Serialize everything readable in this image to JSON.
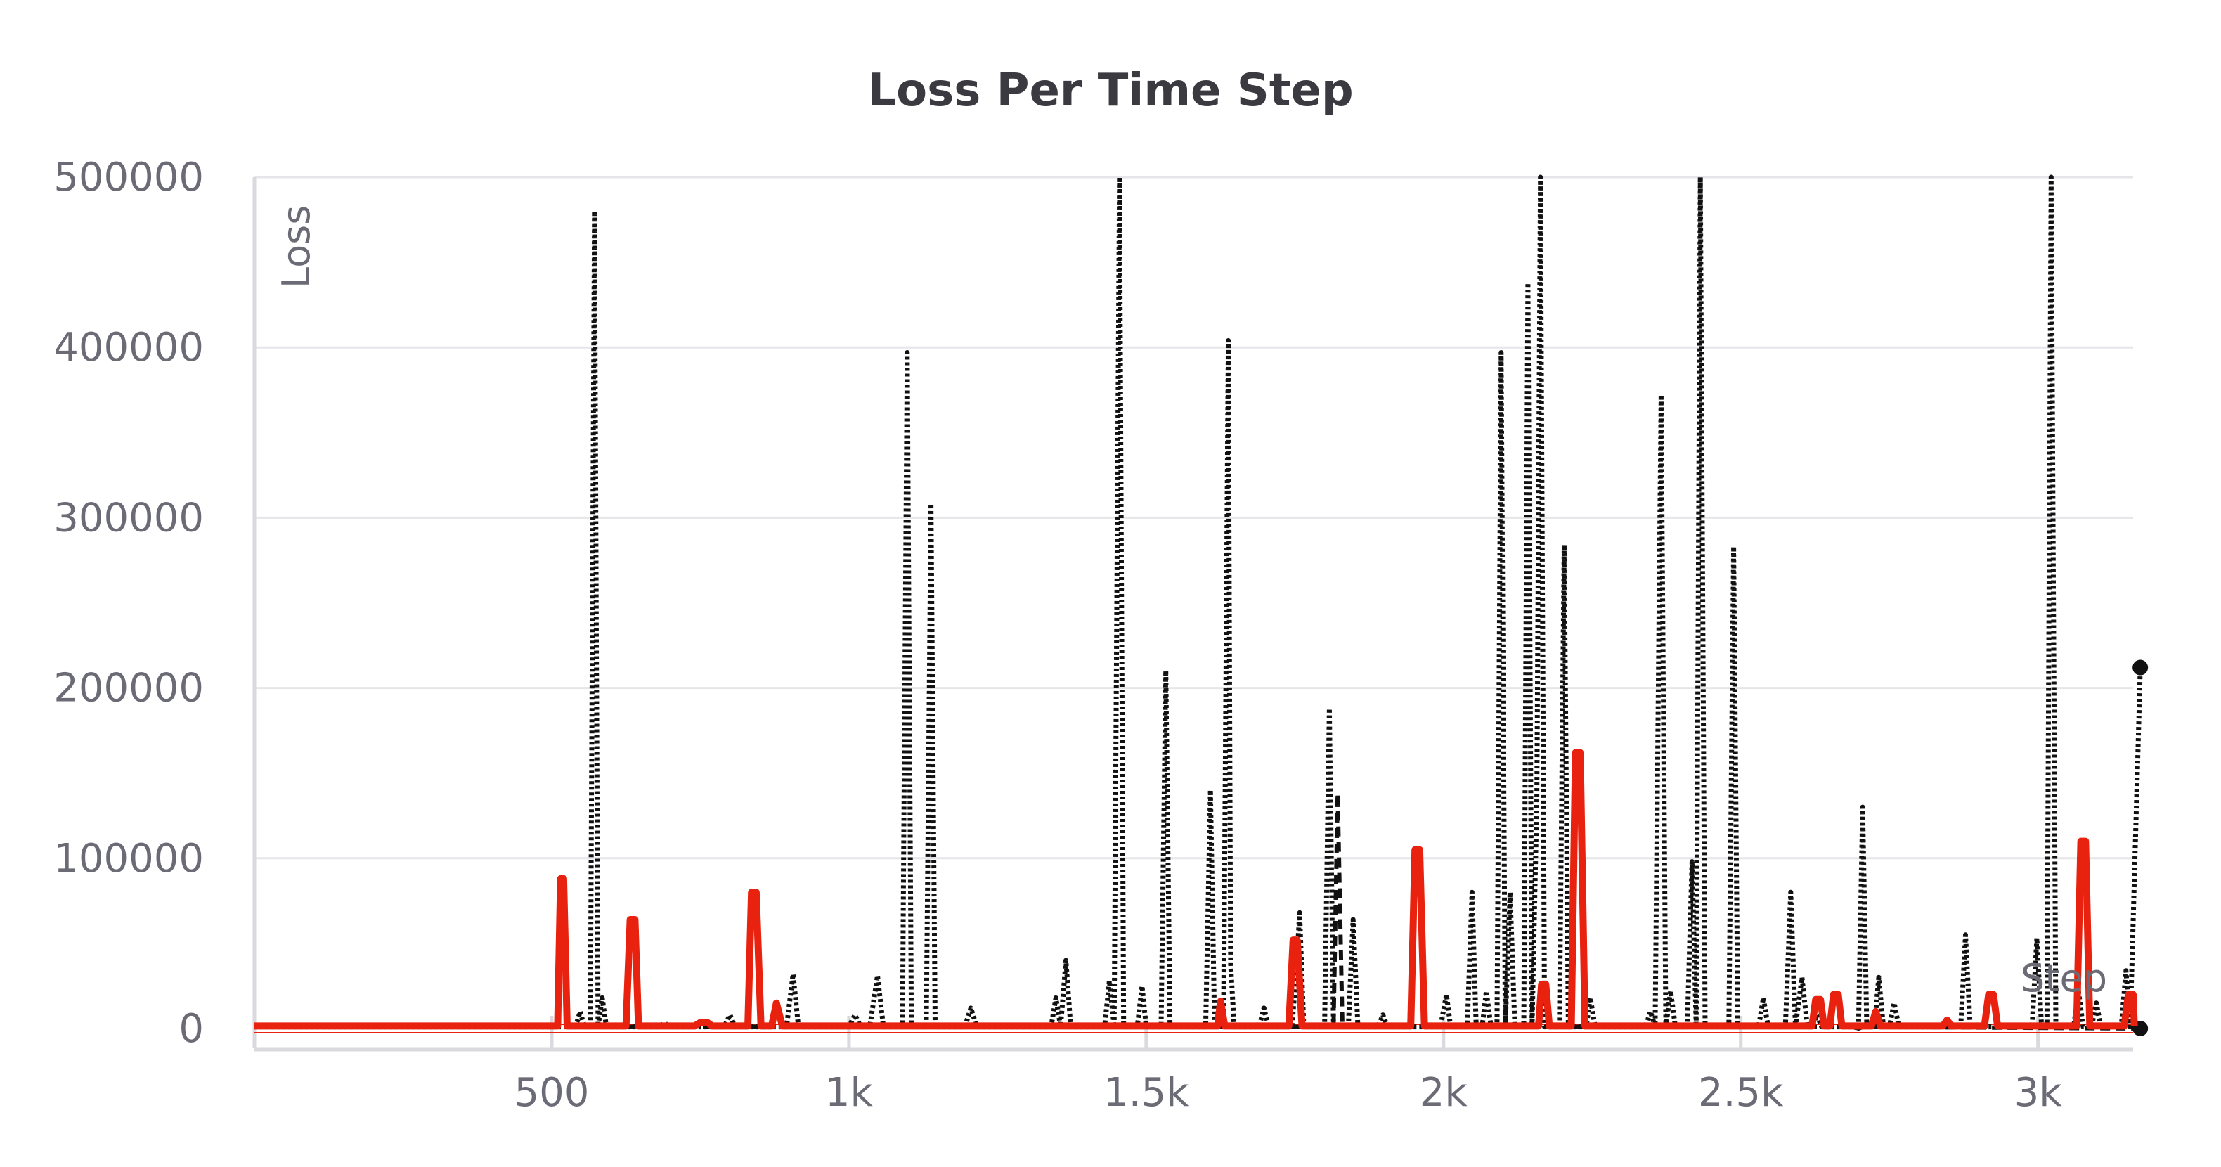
{
  "chart_data": {
    "type": "line",
    "title": "Loss Per Time Step",
    "xlabel": "Step",
    "ylabel": "Loss",
    "xlim": [
      0,
      3160
    ],
    "ylim": [
      0,
      500000
    ],
    "grid": true,
    "x_ticks": [
      {
        "value": 500,
        "label": "500"
      },
      {
        "value": 1000,
        "label": "1k"
      },
      {
        "value": 1500,
        "label": "1.5k"
      },
      {
        "value": 2000,
        "label": "2k"
      },
      {
        "value": 2500,
        "label": "2.5k"
      },
      {
        "value": 3000,
        "label": "3k"
      }
    ],
    "y_ticks": [
      {
        "value": 0,
        "label": "0"
      },
      {
        "value": 100000,
        "label": "100000"
      },
      {
        "value": 200000,
        "label": "200000"
      },
      {
        "value": 300000,
        "label": "300000"
      },
      {
        "value": 400000,
        "label": "400000"
      },
      {
        "value": 500000,
        "label": "500000"
      }
    ],
    "series": [
      {
        "color": "#e8220e",
        "style": "solid",
        "end_marker": false,
        "points": [
          [
            0,
            1500
          ],
          [
            510,
            1500
          ],
          [
            515,
            88000
          ],
          [
            520,
            88000
          ],
          [
            526,
            1500
          ],
          [
            625,
            1500
          ],
          [
            632,
            64000
          ],
          [
            640,
            64000
          ],
          [
            646,
            1500
          ],
          [
            740,
            1500
          ],
          [
            750,
            3500
          ],
          [
            762,
            3500
          ],
          [
            770,
            1500
          ],
          [
            830,
            1500
          ],
          [
            836,
            80000
          ],
          [
            844,
            80000
          ],
          [
            852,
            1500
          ],
          [
            870,
            1500
          ],
          [
            878,
            15000
          ],
          [
            888,
            1500
          ],
          [
            1620,
            1500
          ],
          [
            1625,
            16000
          ],
          [
            1632,
            1500
          ],
          [
            1740,
            1500
          ],
          [
            1747,
            52000
          ],
          [
            1754,
            52000
          ],
          [
            1762,
            1500
          ],
          [
            1945,
            1500
          ],
          [
            1952,
            105000
          ],
          [
            1960,
            105000
          ],
          [
            1968,
            1500
          ],
          [
            2160,
            1500
          ],
          [
            2165,
            26000
          ],
          [
            2172,
            26000
          ],
          [
            2178,
            1500
          ],
          [
            2215,
            1500
          ],
          [
            2222,
            162000
          ],
          [
            2230,
            162000
          ],
          [
            2238,
            1500
          ],
          [
            2620,
            1500
          ],
          [
            2626,
            17000
          ],
          [
            2634,
            17000
          ],
          [
            2640,
            1500
          ],
          [
            2650,
            1500
          ],
          [
            2656,
            20000
          ],
          [
            2664,
            20000
          ],
          [
            2670,
            1500
          ],
          [
            2720,
            1500
          ],
          [
            2727,
            10000
          ],
          [
            2735,
            1500
          ],
          [
            2840,
            1500
          ],
          [
            2847,
            5000
          ],
          [
            2854,
            1500
          ],
          [
            2910,
            1500
          ],
          [
            2917,
            20000
          ],
          [
            2925,
            20000
          ],
          [
            2932,
            1500
          ],
          [
            3065,
            1500
          ],
          [
            3072,
            110000
          ],
          [
            3080,
            110000
          ],
          [
            3087,
            1500
          ],
          [
            3145,
            1500
          ],
          [
            3152,
            20000
          ],
          [
            3160,
            20000
          ],
          [
            3162,
            1500
          ]
        ]
      },
      {
        "color": "#111111",
        "style": "dotted",
        "end_marker": true,
        "points": [
          [
            0,
            1000
          ],
          [
            540,
            1000
          ],
          [
            548,
            10000
          ],
          [
            555,
            1000
          ],
          [
            565,
            1000
          ],
          [
            572,
            480000
          ],
          [
            578,
            1000
          ],
          [
            585,
            18000
          ],
          [
            592,
            1000
          ],
          [
            680,
            1000
          ],
          [
            690,
            3000
          ],
          [
            700,
            1000
          ],
          [
            790,
            1000
          ],
          [
            800,
            8000
          ],
          [
            808,
            1000
          ],
          [
            895,
            1000
          ],
          [
            906,
            32000
          ],
          [
            915,
            1000
          ],
          [
            1000,
            1000
          ],
          [
            1010,
            8000
          ],
          [
            1020,
            1000
          ],
          [
            1035,
            1000
          ],
          [
            1048,
            31000
          ],
          [
            1058,
            1000
          ],
          [
            1090,
            1000
          ],
          [
            1098,
            397000
          ],
          [
            1105,
            1000
          ],
          [
            1130,
            1000
          ],
          [
            1138,
            308000
          ],
          [
            1145,
            1000
          ],
          [
            1195,
            1000
          ],
          [
            1205,
            12000
          ],
          [
            1215,
            1000
          ],
          [
            1340,
            1000
          ],
          [
            1348,
            18000
          ],
          [
            1356,
            1000
          ],
          [
            1365,
            40000
          ],
          [
            1373,
            1000
          ],
          [
            1430,
            1000
          ],
          [
            1438,
            28000
          ],
          [
            1446,
            1000
          ],
          [
            1455,
            500000
          ],
          [
            1462,
            1000
          ],
          [
            1485,
            1000
          ],
          [
            1493,
            25000
          ],
          [
            1500,
            1000
          ],
          [
            1525,
            1000
          ],
          [
            1533,
            210000
          ],
          [
            1540,
            1000
          ],
          [
            1600,
            1000
          ],
          [
            1608,
            140000
          ],
          [
            1615,
            1000
          ],
          [
            1630,
            1000
          ],
          [
            1638,
            404000
          ],
          [
            1642,
            38000
          ],
          [
            1648,
            1000
          ],
          [
            1690,
            1000
          ],
          [
            1698,
            12000
          ],
          [
            1706,
            1000
          ],
          [
            1745,
            1000
          ],
          [
            1752,
            31000
          ],
          [
            1758,
            68000
          ],
          [
            1765,
            1000
          ],
          [
            1800,
            1000
          ],
          [
            1808,
            188000
          ],
          [
            1815,
            1000
          ],
          [
            1840,
            1000
          ],
          [
            1848,
            64000
          ],
          [
            1856,
            1000
          ],
          [
            1890,
            1000
          ],
          [
            1898,
            8000
          ],
          [
            1906,
            1000
          ],
          [
            1995,
            1000
          ],
          [
            2005,
            20000
          ],
          [
            2012,
            1000
          ],
          [
            2040,
            1000
          ],
          [
            2048,
            80000
          ],
          [
            2055,
            1000
          ],
          [
            2065,
            1000
          ],
          [
            2072,
            22000
          ],
          [
            2080,
            1000
          ],
          [
            2090,
            1000
          ],
          [
            2097,
            397000
          ],
          [
            2104,
            1000
          ],
          [
            2112,
            80000
          ],
          [
            2120,
            1000
          ],
          [
            2135,
            1000
          ],
          [
            2142,
            438000
          ],
          [
            2149,
            1000
          ],
          [
            2157,
            135000
          ],
          [
            2163,
            500000
          ],
          [
            2170,
            1000
          ],
          [
            2195,
            1000
          ],
          [
            2203,
            284000
          ],
          [
            2210,
            1000
          ],
          [
            2240,
            1000
          ],
          [
            2247,
            18000
          ],
          [
            2255,
            1000
          ],
          [
            2340,
            1000
          ],
          [
            2348,
            10000
          ],
          [
            2356,
            1000
          ],
          [
            2366,
            372000
          ],
          [
            2374,
            1000
          ],
          [
            2382,
            22000
          ],
          [
            2390,
            1000
          ],
          [
            2410,
            1000
          ],
          [
            2418,
            98000
          ],
          [
            2425,
            1000
          ],
          [
            2432,
            500000
          ],
          [
            2440,
            1000
          ],
          [
            2480,
            1000
          ],
          [
            2488,
            283000
          ],
          [
            2495,
            1000
          ],
          [
            2530,
            1000
          ],
          [
            2538,
            18000
          ],
          [
            2546,
            1000
          ],
          [
            2575,
            1000
          ],
          [
            2584,
            80000
          ],
          [
            2592,
            1000
          ],
          [
            2603,
            30000
          ],
          [
            2612,
            1000
          ],
          [
            2620,
            1000
          ],
          [
            2628,
            8000
          ],
          [
            2636,
            1000
          ],
          [
            2690,
            1000
          ],
          [
            2698,
            0
          ],
          [
            2705,
            130000
          ],
          [
            2712,
            1000
          ],
          [
            2725,
            1000
          ],
          [
            2732,
            30000
          ],
          [
            2740,
            1000
          ],
          [
            2750,
            1000
          ],
          [
            2758,
            15000
          ],
          [
            2766,
            1000
          ],
          [
            2870,
            1000
          ],
          [
            2878,
            55000
          ],
          [
            2886,
            1000
          ],
          [
            2990,
            1000
          ],
          [
            2998,
            53000
          ],
          [
            3006,
            1000
          ],
          [
            3015,
            1000
          ],
          [
            3022,
            500000
          ],
          [
            3030,
            1000
          ],
          [
            3060,
            1000
          ],
          [
            3068,
            22000
          ],
          [
            3076,
            1000
          ],
          [
            3090,
            1000
          ],
          [
            3098,
            15000
          ],
          [
            3106,
            1000
          ],
          [
            3140,
            1000
          ],
          [
            3148,
            34000
          ],
          [
            3155,
            1000
          ],
          [
            3172,
            212000
          ]
        ]
      },
      {
        "color": "#111111",
        "style": "dashed",
        "end_marker": true,
        "points": [
          [
            0,
            1000
          ],
          [
            1815,
            1000
          ],
          [
            1822,
            138000
          ],
          [
            1830,
            1000
          ],
          [
            2690,
            1000
          ],
          [
            2698,
            0
          ],
          [
            2706,
            1000
          ],
          [
            3172,
            0
          ]
        ]
      }
    ]
  }
}
